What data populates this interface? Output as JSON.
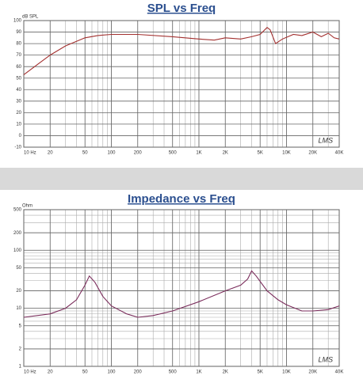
{
  "chart_data": [
    {
      "type": "line",
      "title": "SPL vs Freq",
      "ylabel": "dB SPL",
      "annotation": "LMS",
      "x_scale": "log",
      "y_scale": "linear",
      "grid": true,
      "color": "#a3302f",
      "x": [
        10,
        15,
        20,
        30,
        50,
        70,
        100,
        200,
        500,
        1000,
        1500,
        2000,
        3000,
        4000,
        5000,
        6000,
        6500,
        7500,
        9000,
        12000,
        15000,
        20000,
        25000,
        30000,
        35000,
        40000
      ],
      "values": [
        53,
        63,
        70,
        78,
        85,
        87,
        88,
        88,
        86,
        84,
        83,
        85,
        84,
        86,
        88,
        94,
        92,
        80,
        84,
        88,
        87,
        90,
        86,
        89,
        85,
        84
      ],
      "xlim": [
        10,
        40000
      ],
      "ylim": [
        -10,
        100
      ],
      "xticks": [
        {
          "value": 10,
          "label": "10 Hz"
        },
        20,
        50,
        100,
        200,
        500,
        {
          "value": 1000,
          "label": "1K"
        },
        {
          "value": 2000,
          "label": "2K"
        },
        {
          "value": 5000,
          "label": "5K"
        },
        {
          "value": 10000,
          "label": "10K"
        },
        {
          "value": 20000,
          "label": "20K"
        },
        {
          "value": 40000,
          "label": "40K"
        }
      ],
      "yticks": [
        -10,
        0,
        10,
        20,
        30,
        40,
        50,
        60,
        70,
        80,
        90,
        100
      ]
    },
    {
      "type": "line",
      "title": "Impedance vs Freq",
      "ylabel": "Ohm",
      "annotation": "LMS",
      "x_scale": "log",
      "y_scale": "log",
      "grid": true,
      "color": "#7b2d5c",
      "x": [
        10,
        20,
        30,
        40,
        50,
        56,
        65,
        80,
        100,
        150,
        200,
        300,
        500,
        1000,
        2000,
        3000,
        3600,
        4000,
        4500,
        6000,
        8000,
        10000,
        15000,
        20000,
        30000,
        40000
      ],
      "values": [
        7,
        8,
        10,
        14,
        25,
        36,
        28,
        16,
        11,
        8,
        7,
        7.5,
        9,
        13,
        20,
        25,
        32,
        44,
        36,
        20,
        14,
        11.5,
        9,
        9,
        9.5,
        11
      ],
      "xlim": [
        10,
        40000
      ],
      "ylim": [
        1,
        500
      ],
      "xticks": [
        {
          "value": 10,
          "label": "10 Hz"
        },
        20,
        50,
        100,
        200,
        500,
        {
          "value": 1000,
          "label": "1K"
        },
        {
          "value": 2000,
          "label": "2K"
        },
        {
          "value": 5000,
          "label": "5K"
        },
        {
          "value": 10000,
          "label": "10K"
        },
        {
          "value": 20000,
          "label": "20K"
        },
        {
          "value": 40000,
          "label": "40K"
        }
      ],
      "yticks": [
        1,
        2,
        5,
        10,
        20,
        50,
        100,
        200,
        500
      ]
    }
  ]
}
